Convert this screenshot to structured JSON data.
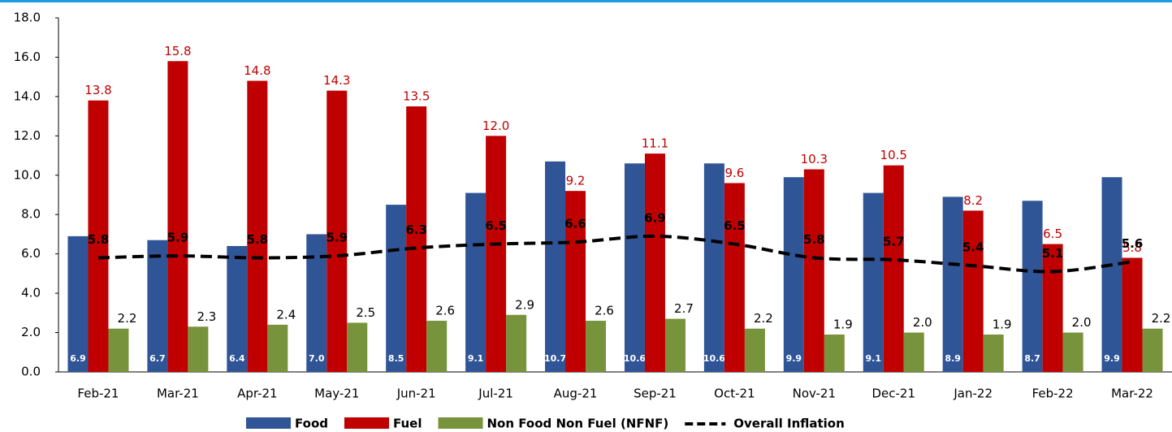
{
  "chart_data": {
    "type": "bar",
    "categories": [
      "Feb-21",
      "Mar-21",
      "Apr-21",
      "May-21",
      "Jun-21",
      "Jul-21",
      "Aug-21",
      "Sep-21",
      "Oct-21",
      "Nov-21",
      "Dec-21",
      "Jan-22",
      "Feb-22",
      "Mar-22"
    ],
    "series": [
      {
        "name": "Food",
        "color": "#2f5597",
        "values": [
          6.9,
          6.7,
          6.4,
          7.0,
          8.5,
          9.1,
          10.7,
          10.6,
          10.6,
          9.9,
          9.1,
          8.9,
          8.7,
          9.9
        ],
        "value_labels": [
          "6.9",
          "6.7",
          "6.4",
          "7.0",
          "8.5",
          "9.1",
          "10.7",
          "10.6",
          "10.6",
          "9.9",
          "9.1",
          "8.9",
          "8.7",
          "9.9"
        ]
      },
      {
        "name": "Fuel",
        "color": "#c00000",
        "values": [
          13.8,
          15.8,
          14.8,
          14.3,
          13.5,
          12.0,
          9.2,
          11.1,
          9.6,
          10.3,
          10.5,
          8.2,
          6.5,
          5.8
        ],
        "value_labels": [
          "13.8",
          "15.8",
          "14.8",
          "14.3",
          "13.5",
          "12.0",
          "9.2",
          "11.1",
          "9.6",
          "10.3",
          "10.5",
          "8.2",
          "6.5",
          "5.8"
        ]
      },
      {
        "name": "Non Food Non Fuel (NFNF)",
        "color": "#77933c",
        "values": [
          2.2,
          2.3,
          2.4,
          2.5,
          2.6,
          2.9,
          2.6,
          2.7,
          2.2,
          1.9,
          2.0,
          1.9,
          2.0,
          2.2
        ],
        "value_labels": [
          "2.2",
          "2.3",
          "2.4",
          "2.5",
          "2.6",
          "2.9",
          "2.6",
          "2.7",
          "2.2",
          "1.9",
          "2.0",
          "1.9",
          "2.0",
          "2.2"
        ]
      },
      {
        "name": "Overall Inflation",
        "type": "line",
        "color": "#000000",
        "values": [
          5.8,
          5.9,
          5.8,
          5.9,
          6.3,
          6.5,
          6.6,
          6.9,
          6.5,
          5.8,
          5.7,
          5.4,
          5.1,
          5.6
        ],
        "value_labels": [
          "5.8",
          "5.9",
          "5.8",
          "5.9",
          "6.3",
          "6.5",
          "6.6",
          "6.9",
          "6.5",
          "5.8",
          "5.7",
          "5.4",
          "5.1",
          "5.6"
        ]
      }
    ],
    "ylim": [
      0,
      18
    ],
    "yticks": [
      {
        "value": 0,
        "label": "0.0"
      },
      {
        "value": 2,
        "label": "2.0"
      },
      {
        "value": 4,
        "label": "4.0"
      },
      {
        "value": 6,
        "label": "6.0"
      },
      {
        "value": 8,
        "label": "8.0"
      },
      {
        "value": 10,
        "label": "10.0"
      },
      {
        "value": 12,
        "label": "12.0"
      },
      {
        "value": 14,
        "label": "14.0"
      },
      {
        "value": 16,
        "label": "16.0"
      },
      {
        "value": 18,
        "label": "18.0"
      }
    ],
    "grid": false,
    "legend": "bottom"
  }
}
